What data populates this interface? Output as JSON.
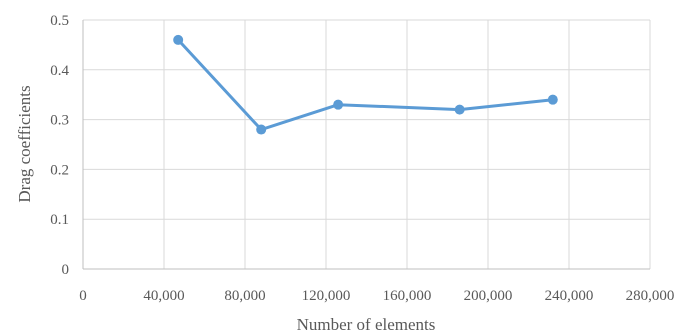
{
  "chart_data": {
    "type": "scatter",
    "xlabel": "Number of elements",
    "ylabel": "Drag coefficients",
    "xlim": [
      0,
      280000
    ],
    "ylim": [
      0,
      0.5
    ],
    "x_ticks": [
      0,
      40000,
      80000,
      120000,
      160000,
      200000,
      240000,
      280000
    ],
    "x_tick_labels": [
      "0",
      "40,000",
      "80,000",
      "120,000",
      "160,000",
      "200,000",
      "240,000",
      "280,000"
    ],
    "y_ticks": [
      0,
      0.1,
      0.2,
      0.3,
      0.4,
      0.5
    ],
    "y_tick_labels": [
      "0",
      "0.1",
      "0.2",
      "0.3",
      "0.4",
      "0.5"
    ],
    "grid": true,
    "legend": "none",
    "line_color": "#5b9bd5",
    "series": [
      {
        "x": [
          47000,
          88000,
          126000,
          186000,
          232000
        ],
        "y": [
          0.46,
          0.28,
          0.33,
          0.32,
          0.34
        ]
      }
    ]
  }
}
